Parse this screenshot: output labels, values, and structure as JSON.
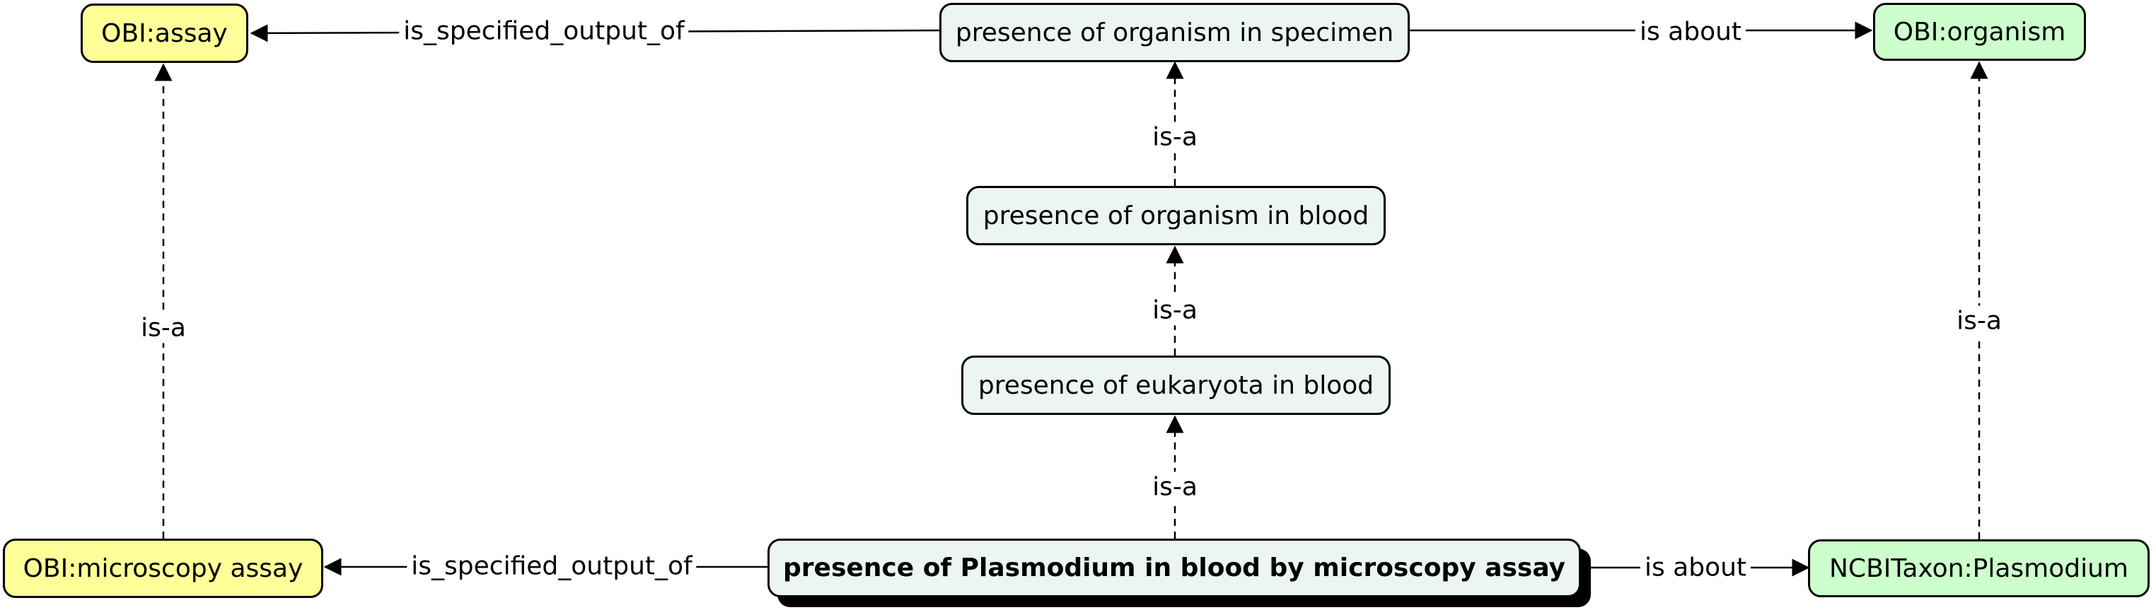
{
  "nodes": {
    "obi_assay": "OBI:assay",
    "presence_specimen": "presence of organism in specimen",
    "obi_organism": "OBI:organism",
    "presence_blood": "presence of organism in blood",
    "presence_eukaryota": "presence of eukaryota in blood",
    "obi_microscopy": "OBI:microscopy assay",
    "presence_plasmodium": "presence of Plasmodium in blood by microscopy assay",
    "ncbi_plasmodium": "NCBITaxon:Plasmodium"
  },
  "edges": {
    "top_specified_output": "is_specified_output_of",
    "top_is_about": "is about",
    "isa_specimen": "is-a",
    "isa_blood": "is-a",
    "isa_eukaryota": "is-a",
    "isa_assay": "is-a",
    "isa_organism": "is-a",
    "bottom_specified_output": "is_specified_output_of",
    "bottom_is_about": "is about"
  },
  "colors": {
    "assay_fill": "#ffff99",
    "organism_fill": "#ccffcc",
    "concept_fill": "#edf4f4",
    "line": "#000000"
  }
}
